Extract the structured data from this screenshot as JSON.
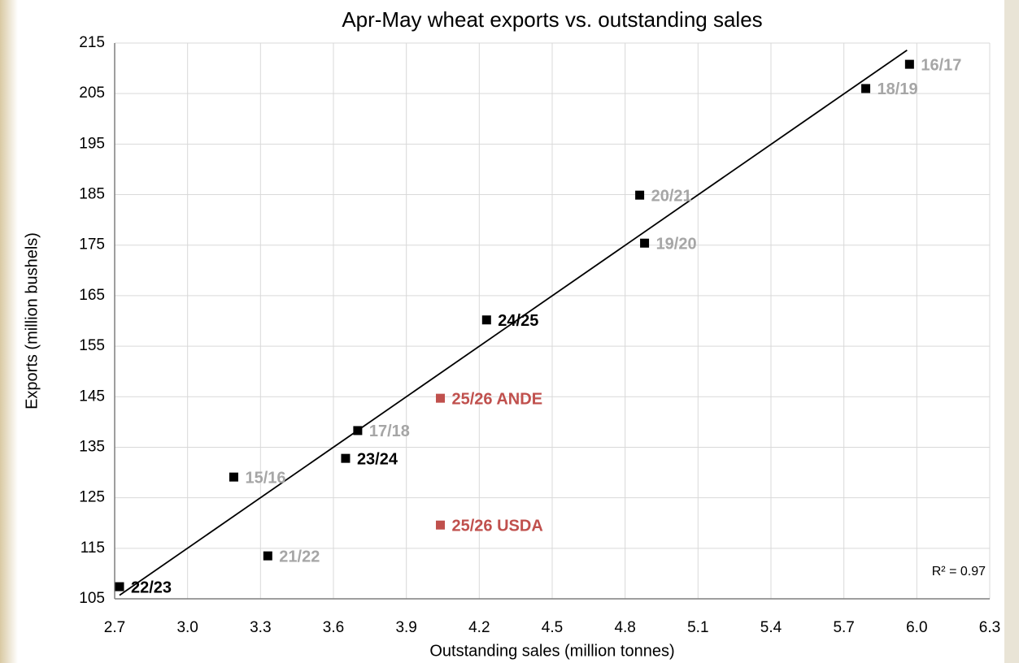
{
  "chart_data": {
    "type": "scatter",
    "title": "Apr-May wheat exports vs. outstanding sales",
    "x_label": "Outstanding sales (million tonnes)",
    "y_label": "Exports (million bushels)",
    "annotation": "R² = 0.97",
    "xlim": [
      2.7,
      6.3
    ],
    "ylim": [
      105,
      215
    ],
    "xticks": [
      2.7,
      {
        "value": 3,
        "label": "3.0"
      },
      3.3,
      3.6,
      3.9,
      4.2,
      4.5,
      4.8,
      5.1,
      5.4,
      5.7,
      {
        "value": 6,
        "label": "6.0"
      },
      6.3
    ],
    "yticks": [
      105,
      115,
      125,
      135,
      145,
      155,
      165,
      175,
      185,
      195,
      205,
      215
    ],
    "grid": true,
    "grid_color": "#d9d9d9",
    "axis_color": "#7f7f7f",
    "points": {
      "x": [
        5.97,
        5.79,
        4.86,
        4.88,
        4.23,
        4.04,
        3.7,
        3.65,
        3.19,
        4.04,
        3.33,
        2.72
      ],
      "y": [
        210.8,
        206,
        184.9,
        175.4,
        160.2,
        144.7,
        138.3,
        132.8,
        129.1,
        119.6,
        113.5,
        107.4
      ],
      "labels": [
        "16/17",
        "18/19",
        "20/21",
        "19/20",
        "24/25",
        "25/26 ANDE",
        "17/18",
        "23/24",
        "15/16",
        "25/26 USDA",
        "21/22",
        "22/23"
      ],
      "marker_colors": [
        "#000000",
        "#000000",
        "#000000",
        "#000000",
        "#000000",
        "#c0504d",
        "#000000",
        "#000000",
        "#000000",
        "#c0504d",
        "#000000",
        "#000000"
      ],
      "label_colors": [
        "#a6a6a6",
        "#a6a6a6",
        "#a6a6a6",
        "#a6a6a6",
        "#000000",
        "#c0504d",
        "#a6a6a6",
        "#000000",
        "#a6a6a6",
        "#c0504d",
        "#a6a6a6",
        "#000000"
      ]
    },
    "trendline": {
      "color": "#000000",
      "x": [
        2.72,
        5.96
      ],
      "y": [
        105.7,
        213.6
      ]
    }
  }
}
